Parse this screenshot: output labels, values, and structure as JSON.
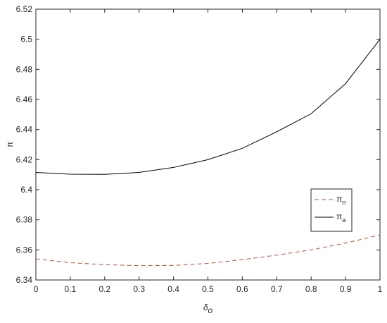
{
  "chart_data": {
    "type": "line",
    "x_label": "δo",
    "y_label": "π",
    "x": [
      0,
      0.1,
      0.2,
      0.3,
      0.4,
      0.5,
      0.6,
      0.7,
      0.8,
      0.9,
      1
    ],
    "series": [
      {
        "name": "πn",
        "color": "#b5533c",
        "dash": true,
        "values": [
          6.354,
          6.3515,
          6.3502,
          6.3495,
          6.3497,
          6.351,
          6.3535,
          6.3565,
          6.36,
          6.3645,
          6.37
        ]
      },
      {
        "name": "πa",
        "color": "#000000",
        "dash": false,
        "values": [
          6.4115,
          6.4103,
          6.4102,
          6.4115,
          6.4148,
          6.42,
          6.4275,
          6.4385,
          6.4505,
          6.4705,
          6.5
        ]
      }
    ],
    "xlim": [
      0,
      1
    ],
    "xticks": [
      0,
      0.1,
      0.2,
      0.3,
      0.4,
      0.5,
      0.6,
      0.7,
      0.8,
      0.9,
      1
    ],
    "ylim": [
      6.34,
      6.52
    ],
    "yticks": [
      6.34,
      6.36,
      6.38,
      6.4,
      6.42,
      6.44,
      6.46,
      6.48,
      6.5,
      6.52
    ],
    "legend": "right"
  }
}
